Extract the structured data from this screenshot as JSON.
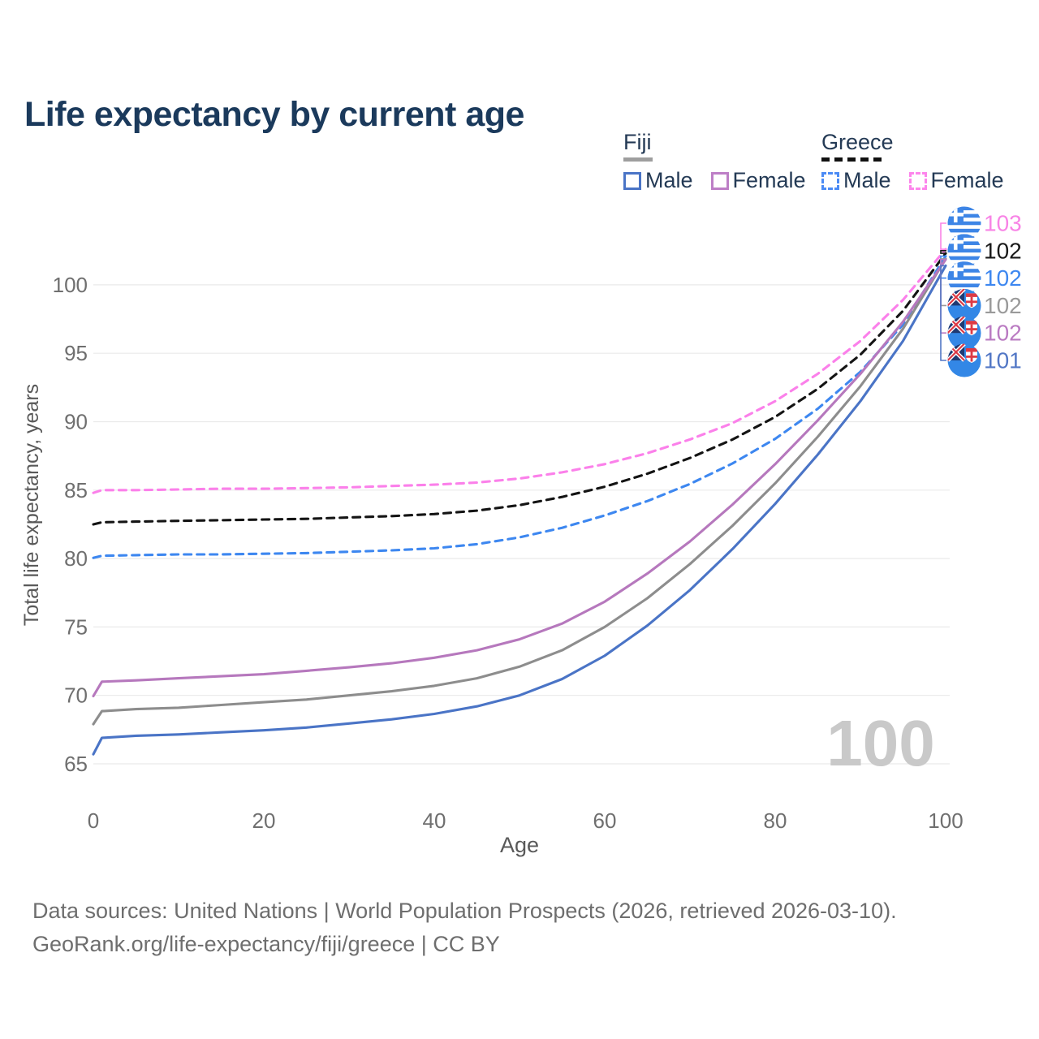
{
  "title": "Life expectancy by current age",
  "watermark": "100",
  "legend": {
    "groups": [
      {
        "country": "Fiji",
        "line_style": "solid",
        "underline_color": "#9e9e9e",
        "items": [
          {
            "label": "Male",
            "color": "#4a74c6",
            "dashed": false
          },
          {
            "label": "Female",
            "color": "#bd7fc6",
            "dashed": false
          }
        ]
      },
      {
        "country": "Greece",
        "line_style": "dashed",
        "underline_color": "#111111",
        "items": [
          {
            "label": "Male",
            "color": "#4b8bf5",
            "dashed": true
          },
          {
            "label": "Female",
            "color": "#fd86ec",
            "dashed": true
          }
        ]
      }
    ]
  },
  "footer": {
    "line1": "Data sources: United Nations | World Population Prospects (2026, retrieved 2026-03-10).",
    "line2": "GeoRank.org/life-expectancy/fiji/greece | CC BY"
  },
  "chart_data": {
    "type": "line",
    "xlabel": "Age",
    "ylabel": "Total life expectancy, years",
    "x_ticks": [
      0,
      20,
      40,
      60,
      80,
      100
    ],
    "y_ticks": [
      65,
      70,
      75,
      80,
      85,
      90,
      95,
      100
    ],
    "xlim": [
      0,
      100
    ],
    "ylim": [
      63.5,
      104.5
    ],
    "grid": true,
    "legend_position": "top-right",
    "x": [
      0,
      1,
      5,
      10,
      15,
      20,
      25,
      30,
      35,
      40,
      45,
      50,
      55,
      60,
      65,
      70,
      75,
      80,
      85,
      90,
      95,
      100
    ],
    "series": [
      {
        "name": "Greece Female",
        "country": "Greece",
        "sex": "Female",
        "color": "#fb80ea",
        "label_color": "#f884e6",
        "dashed": true,
        "flag": "greece",
        "end_label": "103",
        "label_row": 0,
        "values": [
          84.8,
          85.0,
          85.0,
          85.05,
          85.1,
          85.1,
          85.15,
          85.2,
          85.3,
          85.4,
          85.55,
          85.85,
          86.3,
          86.9,
          87.7,
          88.7,
          89.9,
          91.5,
          93.5,
          95.9,
          98.9,
          102.6
        ]
      },
      {
        "name": "Greece Total",
        "country": "Greece",
        "sex": "All",
        "color": "#141414",
        "label_color": "#1a1a1a",
        "dashed": true,
        "flag": "greece",
        "end_label": "102",
        "label_row": 1,
        "values": [
          82.5,
          82.65,
          82.7,
          82.75,
          82.8,
          82.85,
          82.9,
          83.0,
          83.1,
          83.25,
          83.5,
          83.9,
          84.5,
          85.25,
          86.2,
          87.35,
          88.7,
          90.35,
          92.4,
          94.9,
          98.1,
          102.3
        ]
      },
      {
        "name": "Greece Male",
        "country": "Greece",
        "sex": "Male",
        "color": "#3d87f0",
        "label_color": "#3d87f0",
        "dashed": true,
        "flag": "greece",
        "end_label": "102",
        "label_row": 2,
        "values": [
          80.05,
          80.2,
          80.25,
          80.3,
          80.3,
          80.35,
          80.4,
          80.5,
          80.6,
          80.75,
          81.05,
          81.55,
          82.25,
          83.15,
          84.2,
          85.45,
          86.95,
          88.75,
          90.95,
          93.65,
          97.1,
          102.1
        ]
      },
      {
        "name": "Fiji Total",
        "country": "Fiji",
        "sex": "All",
        "color": "#8d8d8d",
        "label_color": "#9a9a9a",
        "dashed": false,
        "flag": "fiji",
        "end_label": "102",
        "label_row": 3,
        "values": [
          67.9,
          68.85,
          69.0,
          69.1,
          69.3,
          69.5,
          69.7,
          70.0,
          70.3,
          70.7,
          71.25,
          72.1,
          73.3,
          75.0,
          77.1,
          79.6,
          82.4,
          85.5,
          88.9,
          92.6,
          96.8,
          101.9
        ]
      },
      {
        "name": "Fiji Female",
        "country": "Fiji",
        "sex": "Female",
        "color": "#b678bd",
        "label_color": "#ba7bc2",
        "dashed": false,
        "flag": "fiji",
        "end_label": "102",
        "label_row": 4,
        "values": [
          69.95,
          71.0,
          71.1,
          71.25,
          71.4,
          71.55,
          71.8,
          72.05,
          72.35,
          72.75,
          73.3,
          74.1,
          75.25,
          76.85,
          78.9,
          81.25,
          83.95,
          86.9,
          90.1,
          93.5,
          97.3,
          101.85
        ]
      },
      {
        "name": "Fiji Male",
        "country": "Fiji",
        "sex": "Male",
        "color": "#4a74c6",
        "label_color": "#5277c5",
        "dashed": false,
        "flag": "fiji",
        "end_label": "101",
        "label_row": 5,
        "values": [
          65.7,
          66.9,
          67.05,
          67.15,
          67.3,
          67.45,
          67.65,
          67.95,
          68.25,
          68.65,
          69.2,
          70.0,
          71.2,
          72.9,
          75.1,
          77.7,
          80.7,
          84.0,
          87.6,
          91.5,
          95.9,
          101.4
        ]
      }
    ]
  }
}
